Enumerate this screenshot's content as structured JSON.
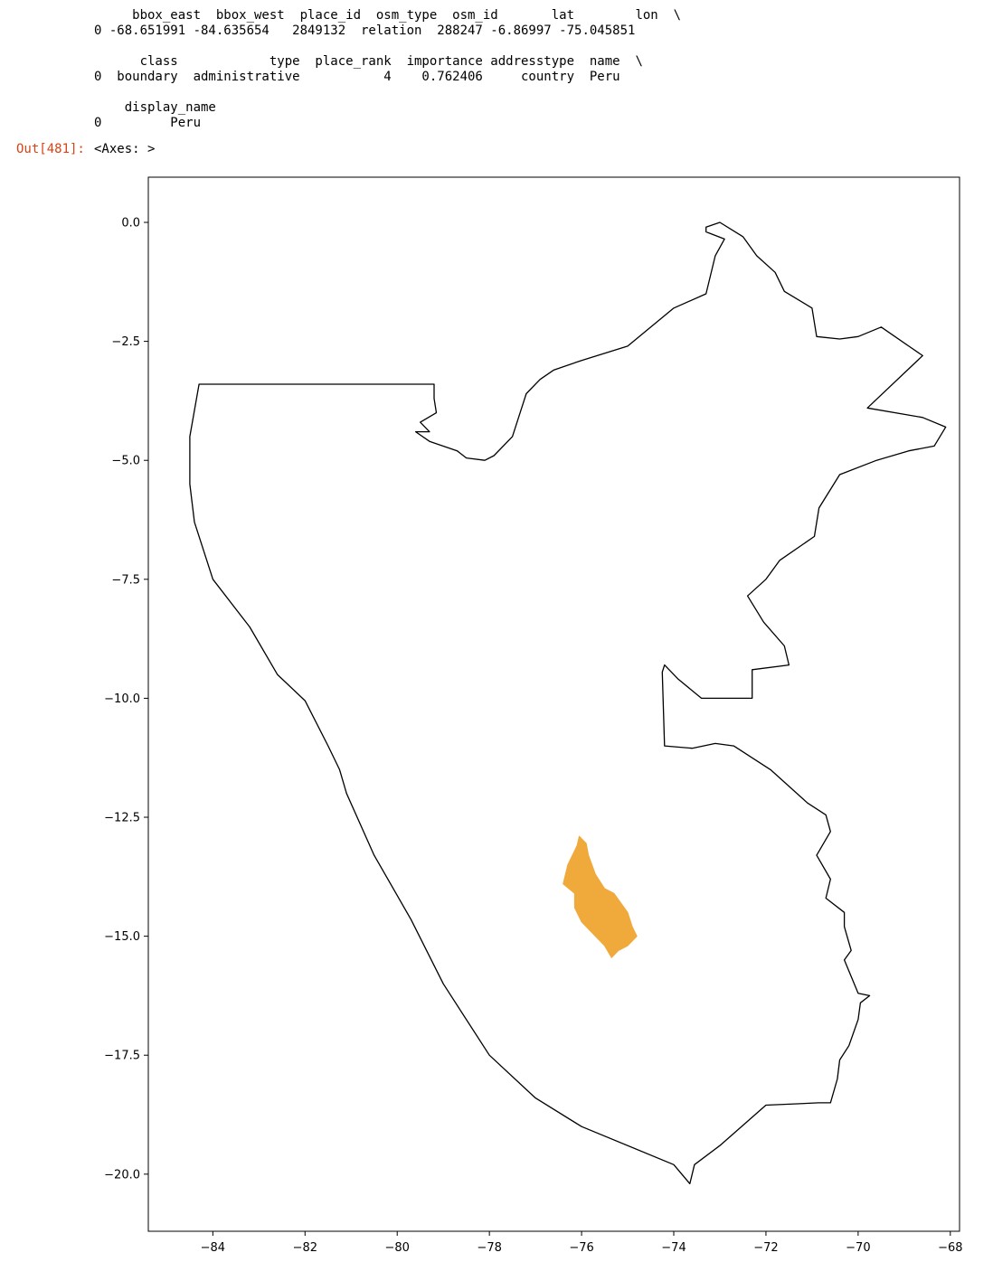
{
  "output_text": {
    "block1_header": "     bbox_east  bbox_west  place_id  osm_type  osm_id       lat        lon  \\",
    "block1_row": "0 -68.651991 -84.635654   2849132  relation  288247 -6.86997 -75.045851",
    "block2_header": "      class            type  place_rank  importance addresstype  name  \\",
    "block2_row": "0  boundary  administrative           4    0.762406     country  Peru",
    "block3_header": "    display_name",
    "block3_row": "0         Peru"
  },
  "out_cell": {
    "prompt": "Out[481]:",
    "value": "<Axes: >"
  },
  "colors": {
    "prompt": "#d84315",
    "boundary": "#000000",
    "highlight": "#f0a93b"
  },
  "chart_data": {
    "type": "map",
    "xlim": [
      -85.4,
      -67.8
    ],
    "ylim": [
      -21.2,
      0.95
    ],
    "x_ticks": [
      -84,
      -82,
      -80,
      -78,
      -76,
      -74,
      -72,
      -70,
      -68
    ],
    "y_ticks": [
      0.0,
      -2.5,
      -5.0,
      -7.5,
      -10.0,
      -12.5,
      -15.0,
      -17.5,
      -20.0
    ],
    "x_tick_labels": [
      "−84",
      "−82",
      "−80",
      "−78",
      "−76",
      "−74",
      "−72",
      "−70",
      "−68"
    ],
    "y_tick_labels": [
      "0.0",
      "−2.5",
      "−5.0",
      "−7.5",
      "−10.0",
      "−12.5",
      "−15.0",
      "−17.5",
      "−20.0"
    ],
    "layers": [
      {
        "name": "Peru",
        "style": "outline",
        "coords": [
          [
            -84.3,
            -3.4
          ],
          [
            -79.2,
            -3.4
          ],
          [
            -79.2,
            -3.7
          ],
          [
            -79.15,
            -4.0
          ],
          [
            -79.5,
            -4.2
          ],
          [
            -79.3,
            -4.4
          ],
          [
            -79.6,
            -4.4
          ],
          [
            -79.3,
            -4.6
          ],
          [
            -78.7,
            -4.8
          ],
          [
            -78.5,
            -4.95
          ],
          [
            -78.1,
            -5.0
          ],
          [
            -77.9,
            -4.9
          ],
          [
            -77.5,
            -4.5
          ],
          [
            -77.3,
            -3.9
          ],
          [
            -77.2,
            -3.6
          ],
          [
            -76.9,
            -3.3
          ],
          [
            -76.6,
            -3.1
          ],
          [
            -76.0,
            -2.9
          ],
          [
            -75.0,
            -2.6
          ],
          [
            -74.0,
            -1.8
          ],
          [
            -73.3,
            -1.5
          ],
          [
            -73.1,
            -0.7
          ],
          [
            -72.9,
            -0.35
          ],
          [
            -73.3,
            -0.2
          ],
          [
            -73.3,
            -0.1
          ],
          [
            -73.0,
            0.0
          ],
          [
            -72.5,
            -0.3
          ],
          [
            -72.2,
            -0.7
          ],
          [
            -71.8,
            -1.05
          ],
          [
            -71.6,
            -1.45
          ],
          [
            -71.0,
            -1.8
          ],
          [
            -70.9,
            -2.4
          ],
          [
            -70.4,
            -2.45
          ],
          [
            -70.0,
            -2.4
          ],
          [
            -69.5,
            -2.2
          ],
          [
            -68.9,
            -2.6
          ],
          [
            -68.6,
            -2.8
          ],
          [
            -69.8,
            -3.9
          ],
          [
            -68.6,
            -4.1
          ],
          [
            -68.1,
            -4.3
          ],
          [
            -68.35,
            -4.7
          ],
          [
            -68.9,
            -4.8
          ],
          [
            -69.6,
            -5.0
          ],
          [
            -70.4,
            -5.3
          ],
          [
            -70.85,
            -6.0
          ],
          [
            -70.95,
            -6.6
          ],
          [
            -71.7,
            -7.1
          ],
          [
            -72.0,
            -7.5
          ],
          [
            -72.4,
            -7.85
          ],
          [
            -72.05,
            -8.4
          ],
          [
            -71.6,
            -8.9
          ],
          [
            -71.5,
            -9.3
          ],
          [
            -72.3,
            -9.4
          ],
          [
            -72.3,
            -10.0
          ],
          [
            -73.4,
            -10.0
          ],
          [
            -73.9,
            -9.6
          ],
          [
            -74.2,
            -9.3
          ],
          [
            -74.25,
            -9.45
          ],
          [
            -74.2,
            -11.0
          ],
          [
            -73.6,
            -11.05
          ],
          [
            -73.1,
            -10.95
          ],
          [
            -72.7,
            -11.0
          ],
          [
            -71.9,
            -11.5
          ],
          [
            -71.1,
            -12.2
          ],
          [
            -70.7,
            -12.45
          ],
          [
            -70.6,
            -12.8
          ],
          [
            -70.9,
            -13.3
          ],
          [
            -70.6,
            -13.8
          ],
          [
            -70.7,
            -14.2
          ],
          [
            -70.3,
            -14.5
          ],
          [
            -70.3,
            -14.8
          ],
          [
            -70.15,
            -15.3
          ],
          [
            -70.3,
            -15.5
          ],
          [
            -70.0,
            -16.2
          ],
          [
            -69.75,
            -16.25
          ],
          [
            -69.95,
            -16.4
          ],
          [
            -70.0,
            -16.75
          ],
          [
            -70.2,
            -17.3
          ],
          [
            -70.4,
            -17.6
          ],
          [
            -70.45,
            -18.0
          ],
          [
            -70.6,
            -18.5
          ],
          [
            -70.85,
            -18.5
          ],
          [
            -72.0,
            -18.55
          ],
          [
            -73.0,
            -19.4
          ],
          [
            -73.55,
            -19.8
          ],
          [
            -73.65,
            -20.2
          ],
          [
            -74.0,
            -19.8
          ],
          [
            -76.0,
            -19.0
          ],
          [
            -77.0,
            -18.4
          ],
          [
            -78.0,
            -17.5
          ],
          [
            -79.0,
            -16.0
          ],
          [
            -79.7,
            -14.65
          ],
          [
            -80.5,
            -13.3
          ],
          [
            -81.1,
            -12.0
          ],
          [
            -81.25,
            -11.5
          ],
          [
            -81.5,
            -11.0
          ],
          [
            -82.0,
            -10.05
          ],
          [
            -82.6,
            -9.5
          ],
          [
            -83.2,
            -8.5
          ],
          [
            -84.0,
            -7.5
          ],
          [
            -84.4,
            -6.3
          ],
          [
            -84.5,
            -5.5
          ],
          [
            -84.5,
            -4.5
          ],
          [
            -84.3,
            -3.4
          ]
        ]
      },
      {
        "name": "highlighted region",
        "style": "fill",
        "coords": [
          [
            -76.05,
            -12.9
          ],
          [
            -75.9,
            -13.05
          ],
          [
            -75.85,
            -13.3
          ],
          [
            -75.7,
            -13.7
          ],
          [
            -75.5,
            -14.0
          ],
          [
            -75.3,
            -14.1
          ],
          [
            -75.0,
            -14.5
          ],
          [
            -74.9,
            -14.8
          ],
          [
            -74.8,
            -15.0
          ],
          [
            -75.0,
            -15.2
          ],
          [
            -75.2,
            -15.3
          ],
          [
            -75.35,
            -15.45
          ],
          [
            -75.5,
            -15.2
          ],
          [
            -75.7,
            -15.0
          ],
          [
            -76.0,
            -14.7
          ],
          [
            -76.15,
            -14.4
          ],
          [
            -76.15,
            -14.1
          ],
          [
            -76.4,
            -13.9
          ],
          [
            -76.3,
            -13.5
          ],
          [
            -76.1,
            -13.1
          ],
          [
            -76.05,
            -12.9
          ]
        ]
      }
    ]
  }
}
